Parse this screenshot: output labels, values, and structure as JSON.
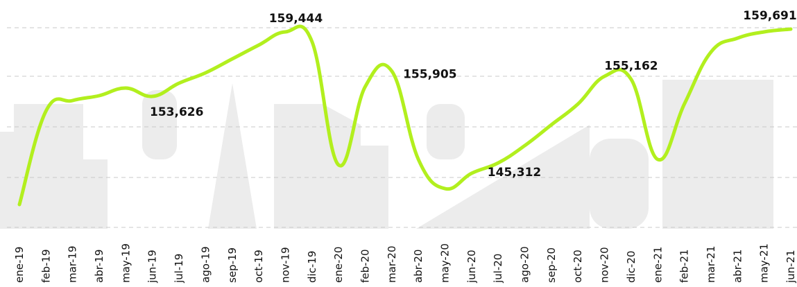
{
  "chart_data": {
    "type": "line",
    "categories": [
      "ene-19",
      "feb-19",
      "mar-19",
      "abr-19",
      "may-19",
      "jun-19",
      "jul-19",
      "ago-19",
      "sep-19",
      "oct-19",
      "nov-19",
      "dic-19",
      "ene-20",
      "feb-20",
      "mar-20",
      "abr-20",
      "may-20",
      "jun-20",
      "jul-20",
      "ago-20",
      "sep-20",
      "oct-20",
      "nov-20",
      "dic-20",
      "ene-21",
      "feb-21",
      "mar-21",
      "abr-21",
      "may-21",
      "jun-21"
    ],
    "series": [
      {
        "color": "#b2ef1e",
        "values": [
          143878,
          152316,
          153253,
          153691,
          154378,
          153626,
          154816,
          155753,
          157003,
          158253,
          159444,
          158566,
          147441,
          154503,
          155905,
          147941,
          145312,
          146691,
          147628,
          149191,
          151066,
          152941,
          155441,
          155162,
          147941,
          152941,
          157628,
          158878,
          159441,
          159691
        ],
        "value_labels": [
          null,
          null,
          null,
          null,
          null,
          "153,626",
          null,
          null,
          null,
          null,
          "159,444",
          null,
          null,
          null,
          "155,905",
          null,
          "145,312",
          null,
          null,
          null,
          null,
          null,
          null,
          "155,162",
          null,
          null,
          null,
          null,
          null,
          "159,691"
        ]
      }
    ],
    "ylim": [
      141816,
      162316
    ]
  }
}
